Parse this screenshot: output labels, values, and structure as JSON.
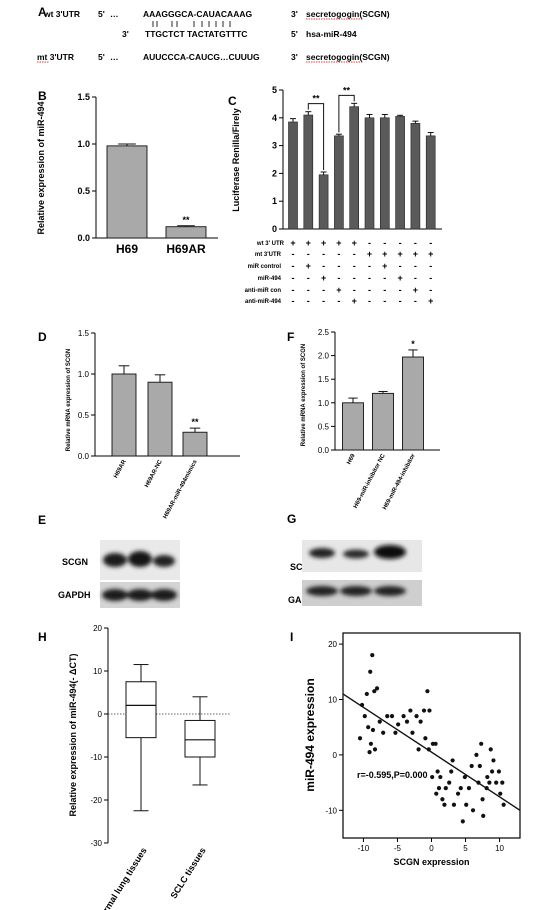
{
  "panel_labels": {
    "A": "A",
    "B": "B",
    "C": "C",
    "D": "D",
    "E": "E",
    "F": "F",
    "G": "G",
    "H": "H",
    "I": "I"
  },
  "panel_a": {
    "r1_left": "wt 3'UTR",
    "r1_5": "5'",
    "r1_dots": "…",
    "r1_seq": "AAAGGGCA-CAUACAAAG",
    "r1_3": "3'",
    "r1_target": "secretogogin(SCGN)",
    "r2_3": "3'",
    "r2_seq": "TTGCTCT TACTATGTTTC",
    "r2_5": "5'",
    "r2_target": "hsa-miR-494",
    "r3_left": "mt 3'UTR",
    "r3_5": "5'",
    "r3_dots": "…",
    "r3_seq": "AUUCCCA-CAUCG…CUUUG",
    "r3_3": "3'",
    "r3_target": "secretogogin(SCGN)"
  },
  "sig_marker": "**",
  "sig_marker_single": "*",
  "chart_data": [
    {
      "id": "B",
      "type": "bar",
      "categories": [
        "H69",
        "H69AR"
      ],
      "values": [
        0.98,
        0.12
      ],
      "errors": [
        0.02,
        0.01
      ],
      "significance": [
        "",
        "**"
      ],
      "ylabel": "Relative expression of miR-494",
      "ylim": [
        0,
        1.5
      ],
      "yticks": [
        "0.0",
        "0.5",
        "1.0",
        "1.5"
      ]
    },
    {
      "id": "C",
      "type": "bar",
      "values": [
        3.85,
        4.1,
        1.95,
        3.35,
        4.4,
        4.0,
        4.0,
        4.05,
        3.8,
        3.35
      ],
      "errors": [
        0.12,
        0.12,
        0.1,
        0.06,
        0.12,
        0.12,
        0.12,
        0.04,
        0.08,
        0.12
      ],
      "ylabel": "Luciferase Renilla/Firely",
      "ylim": [
        0,
        5
      ],
      "yticks": [
        "0",
        "1",
        "2",
        "3",
        "4",
        "5"
      ],
      "brackets": [
        {
          "from": 2,
          "to": 3,
          "label": "**"
        },
        {
          "from": 4,
          "to": 5,
          "label": "**"
        }
      ],
      "rows": [
        {
          "label": "wt 3' UTR",
          "signs": [
            "+",
            "+",
            "+",
            "+",
            "+",
            "-",
            "-",
            "-",
            "-",
            "-"
          ]
        },
        {
          "label": "mt 3'UTR",
          "signs": [
            "-",
            "-",
            "-",
            "-",
            "-",
            "+",
            "+",
            "+",
            "+",
            "+"
          ]
        },
        {
          "label": "miR control",
          "signs": [
            "-",
            "+",
            "-",
            "-",
            "-",
            "-",
            "+",
            "-",
            "-",
            "-"
          ]
        },
        {
          "label": "miR-494",
          "signs": [
            "-",
            "-",
            "+",
            "-",
            "-",
            "-",
            "-",
            "+",
            "-",
            "-"
          ]
        },
        {
          "label": "anti-miR con",
          "signs": [
            "-",
            "-",
            "-",
            "+",
            "-",
            "-",
            "-",
            "-",
            "+",
            "-"
          ]
        },
        {
          "label": "anti-miR-494",
          "signs": [
            "-",
            "-",
            "-",
            "-",
            "+",
            "-",
            "-",
            "-",
            "-",
            "+"
          ]
        }
      ]
    },
    {
      "id": "D",
      "type": "bar",
      "categories": [
        "H69AR",
        "H69AR-NC",
        "H69AR-miR-494mimics"
      ],
      "values": [
        1.0,
        0.9,
        0.29
      ],
      "errors": [
        0.1,
        0.09,
        0.05
      ],
      "significance": [
        "",
        "",
        "**"
      ],
      "ylabel": "Relative mRNA expression of SCGN",
      "ylim": [
        0,
        1.5
      ],
      "yticks": [
        "0.0",
        "0.5",
        "1.0",
        "1.5"
      ]
    },
    {
      "id": "F",
      "type": "bar",
      "categories": [
        "H69",
        "H69-miR-inhibitor NC",
        "H69-miR-494-inhibitor"
      ],
      "values": [
        1.0,
        1.2,
        1.97
      ],
      "errors": [
        0.1,
        0.04,
        0.15
      ],
      "significance": [
        "",
        "",
        "*"
      ],
      "ylabel": "Relative mRNA expression of SCGN",
      "ylim": [
        0,
        2.5
      ],
      "yticks": [
        "0.0",
        "0.5",
        "1.0",
        "1.5",
        "2.0",
        "2.5"
      ]
    },
    {
      "id": "H",
      "type": "box",
      "categories": [
        "normal lung tissues",
        "SCLC tissues"
      ],
      "boxes": [
        {
          "min": -22.5,
          "q1": -5.5,
          "median": 2,
          "q3": 7.5,
          "max": 11.5
        },
        {
          "min": -16.5,
          "q1": -10,
          "median": -6,
          "q3": -1.5,
          "max": 4
        }
      ],
      "ylabel": "Relative expression of miR-494(- ΔCT)",
      "ylim": [
        -30,
        20
      ],
      "yticks": [
        "20",
        "10",
        "0",
        "-10",
        "-20",
        "-30"
      ]
    },
    {
      "id": "I",
      "type": "scatter",
      "xlabel": "SCGN expression",
      "ylabel": "miR-494 expression",
      "xlim": [
        -13,
        13
      ],
      "ylim": [
        -15,
        22
      ],
      "xticks": [
        "-10",
        "-5",
        "0",
        "5",
        "10"
      ],
      "yticks": [
        "20",
        "10",
        "0",
        "-10"
      ],
      "annotation": "r=-0.595,P=0.000",
      "fit": {
        "x1": -13,
        "y1": 11,
        "x2": 13,
        "y2": -10
      },
      "points": [
        [
          -9.5,
          11
        ],
        [
          -9,
          15
        ],
        [
          -8.7,
          18
        ],
        [
          -8.4,
          11.5
        ],
        [
          -8,
          12
        ],
        [
          -9.8,
          7
        ],
        [
          -9.3,
          5
        ],
        [
          -8.6,
          4.5
        ],
        [
          -8.9,
          2
        ],
        [
          -9.1,
          0.5
        ],
        [
          -8.3,
          1
        ],
        [
          -10.2,
          9
        ],
        [
          -10.5,
          3
        ],
        [
          -7.6,
          6
        ],
        [
          -7.1,
          4
        ],
        [
          -6.5,
          7
        ],
        [
          -5.8,
          7
        ],
        [
          -5.3,
          4
        ],
        [
          -4.9,
          5.5
        ],
        [
          -4.1,
          7
        ],
        [
          -3.6,
          6
        ],
        [
          -3.1,
          8
        ],
        [
          -2.8,
          4
        ],
        [
          -2.2,
          7
        ],
        [
          -1.6,
          6
        ],
        [
          -1.1,
          8
        ],
        [
          -0.6,
          11.5
        ],
        [
          -0.3,
          8
        ],
        [
          -1.9,
          1
        ],
        [
          -0.9,
          3
        ],
        [
          -0.4,
          1
        ],
        [
          0.2,
          2
        ],
        [
          0.6,
          2
        ],
        [
          0.1,
          -4
        ],
        [
          0.9,
          -3
        ],
        [
          1.3,
          -4
        ],
        [
          0.7,
          -7
        ],
        [
          1.1,
          -6
        ],
        [
          1.6,
          -8
        ],
        [
          2.1,
          -6
        ],
        [
          2.6,
          -5
        ],
        [
          2.9,
          -3
        ],
        [
          3.3,
          -9
        ],
        [
          3.9,
          -7
        ],
        [
          4.3,
          -6
        ],
        [
          4.6,
          -12
        ],
        [
          5.1,
          -9
        ],
        [
          5.5,
          -6
        ],
        [
          6.1,
          -10
        ],
        [
          6.6,
          0
        ],
        [
          7.1,
          -2
        ],
        [
          7.5,
          -8
        ],
        [
          8.1,
          -6
        ],
        [
          8.5,
          -5
        ],
        [
          8.9,
          -3
        ],
        [
          9.1,
          -1
        ],
        [
          9.5,
          -5
        ],
        [
          10.1,
          -7
        ],
        [
          10.4,
          -5
        ],
        [
          9.9,
          -3
        ],
        [
          7.6,
          -11
        ],
        [
          8.2,
          -4
        ],
        [
          6.9,
          -5
        ],
        [
          5.9,
          -2
        ],
        [
          4.9,
          -4
        ],
        [
          1.9,
          -9
        ],
        [
          3.1,
          -1
        ],
        [
          7.3,
          2
        ],
        [
          8.7,
          1
        ],
        [
          10.6,
          -9
        ]
      ]
    }
  ],
  "blots": {
    "E": {
      "bands": [
        "SCGN",
        "GAPDH"
      ]
    },
    "G": {
      "bands": [
        "SCGN",
        "GAPDH"
      ]
    }
  }
}
